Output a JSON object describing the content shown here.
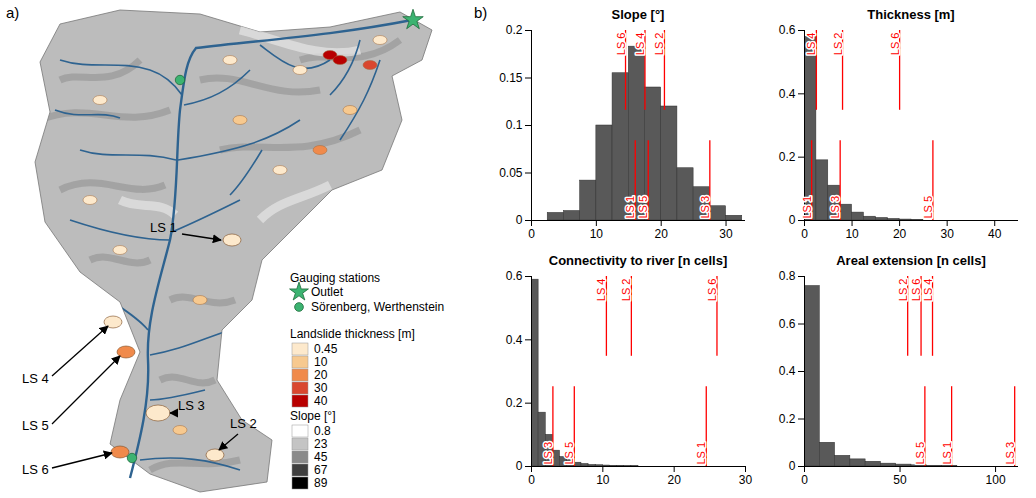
{
  "panel_labels": [
    "a)",
    "b)"
  ],
  "map": {
    "gauging_stations": {
      "title": "Gauging stations",
      "items": [
        {
          "name": "Outlet",
          "marker": "star",
          "color": "#3cb371"
        },
        {
          "name": "Sörenberg, Werthenstein",
          "marker": "circle",
          "color": "#3cb371"
        }
      ]
    },
    "landslide_thickness": {
      "title": "Landslide thickness [m]",
      "values": [
        0.45,
        10,
        20,
        30,
        40
      ],
      "colors": [
        "#fde9cc",
        "#f7c98f",
        "#f08a4b",
        "#d9472f",
        "#b80000"
      ]
    },
    "slope": {
      "title": "Slope [°]",
      "values": [
        0.8,
        23,
        45,
        67,
        89
      ],
      "colors": [
        "#ffffff",
        "#c4c4c4",
        "#8a8a8a",
        "#3f3f3f",
        "#000000"
      ]
    },
    "landslides": [
      "LS 1",
      "LS 2",
      "LS 3",
      "LS 4",
      "LS 5",
      "LS 6"
    ]
  },
  "chart_data": [
    {
      "type": "histogram",
      "title": "Slope [°]",
      "bins": [
        2.5,
        5,
        7.5,
        10,
        12.5,
        15,
        17.5,
        20,
        22.5,
        25,
        27.5,
        30,
        32.5
      ],
      "values": [
        0.008,
        0.01,
        0.042,
        0.1,
        0.155,
        0.183,
        0.14,
        0.12,
        0.055,
        0.035,
        0.015,
        0.005
      ],
      "color": "#595959",
      "xlim": [
        0,
        33
      ],
      "xticks": [
        0,
        10,
        20,
        30
      ],
      "ylim": [
        0,
        0.2
      ],
      "yticks": [
        0,
        0.05,
        0.1,
        0.15,
        0.2
      ],
      "landslides": {
        "names": [
          "LS 1",
          "LS 2",
          "LS 3",
          "LS 4",
          "LS 5",
          "LS 6"
        ],
        "values": [
          16,
          20.5,
          27.5,
          17.5,
          18,
          14.5
        ],
        "color": "#ff0000"
      }
    },
    {
      "type": "histogram",
      "title": "Thickness [m]",
      "bins": [
        0,
        2.5,
        5,
        7.5,
        10,
        12.5,
        15,
        17.5,
        20,
        22.5,
        25
      ],
      "values": [
        0.58,
        0.19,
        0.11,
        0.05,
        0.025,
        0.012,
        0.008,
        0.005,
        0.003,
        0.002
      ],
      "color": "#595959",
      "xlim": [
        0,
        45
      ],
      "xticks": [
        0,
        10,
        20,
        30,
        40
      ],
      "ylim": [
        0,
        0.6
      ],
      "yticks": [
        0,
        0.2,
        0.4,
        0.6
      ],
      "landslides": {
        "names": [
          "LS 1",
          "LS 2",
          "LS 3",
          "LS 4",
          "LS 5",
          "LS 6"
        ],
        "values": [
          1.5,
          8,
          7.5,
          2.5,
          27,
          20
        ],
        "color": "#ff0000"
      }
    },
    {
      "type": "histogram",
      "title": "Connectivity to river [n cells]",
      "bins": [
        0,
        1,
        2,
        3,
        4,
        5,
        6,
        7,
        8,
        9,
        10,
        11,
        12,
        13,
        14,
        15
      ],
      "values": [
        0.59,
        0.17,
        0.1,
        0.05,
        0.03,
        0.02,
        0.012,
        0.008,
        0.005,
        0.004,
        0.003,
        0.002,
        0.002,
        0.001,
        0.001
      ],
      "color": "#595959",
      "xlim": [
        0,
        30
      ],
      "xticks": [
        0,
        10,
        20,
        30
      ],
      "ylim": [
        0,
        0.6
      ],
      "yticks": [
        0,
        0.2,
        0.4,
        0.6
      ],
      "landslides": {
        "names": [
          "LS 1",
          "LS 2",
          "LS 3",
          "LS 4",
          "LS 5",
          "LS 6"
        ],
        "values": [
          24.5,
          14,
          3,
          10.5,
          6,
          26
        ],
        "color": "#ff0000"
      }
    },
    {
      "type": "histogram",
      "title": "Areal extension [n cells]",
      "bins": [
        0,
        8,
        16,
        24,
        32,
        40,
        48,
        56,
        64,
        72,
        80
      ],
      "values": [
        0.76,
        0.1,
        0.045,
        0.03,
        0.02,
        0.012,
        0.008,
        0.005,
        0.003,
        0.002
      ],
      "color": "#595959",
      "xlim": [
        0,
        112
      ],
      "xticks": [
        0,
        50,
        100
      ],
      "ylim": [
        0,
        0.8
      ],
      "yticks": [
        0,
        0.2,
        0.4,
        0.6,
        0.8
      ],
      "landslides": {
        "names": [
          "LS 1",
          "LS 2",
          "LS 3",
          "LS 4",
          "LS 5",
          "LS 6"
        ],
        "values": [
          77,
          54,
          110,
          67,
          63,
          61
        ],
        "color": "#ff0000"
      }
    }
  ]
}
